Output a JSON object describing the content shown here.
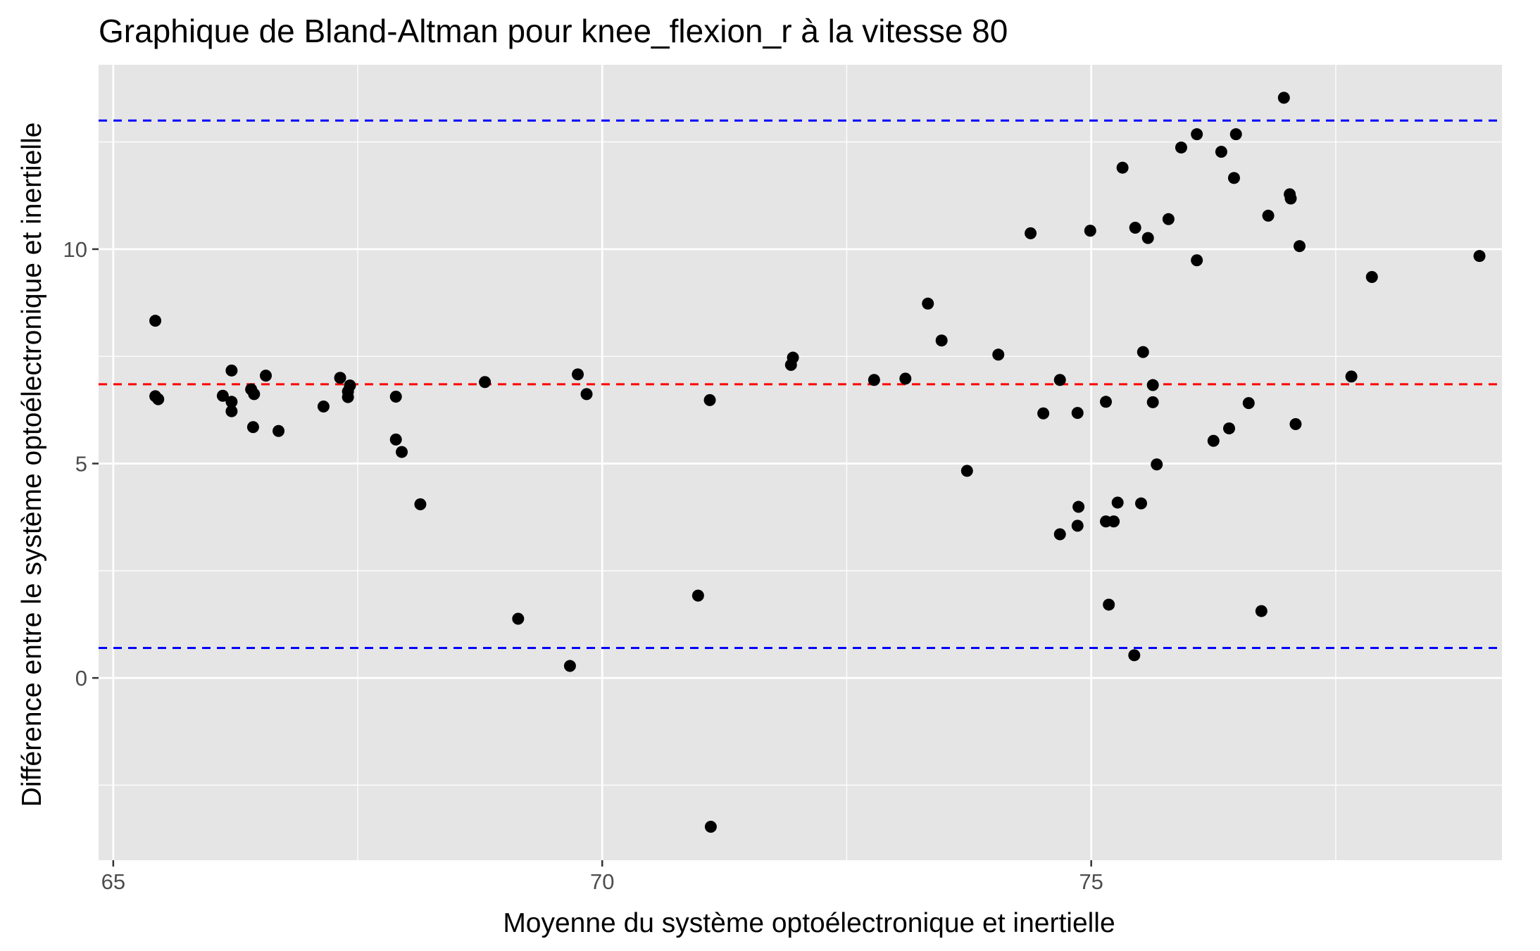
{
  "chart_data": {
    "type": "scatter",
    "title": "Graphique de Bland-Altman pour knee_flexion_r à la vitesse 80",
    "xlabel": "Moyenne du système optoélectronique et inertielle",
    "ylabel": "Différence entre le système optoélectronique et inertielle",
    "xlim": [
      64.85,
      79.2
    ],
    "ylim": [
      -4.25,
      14.3
    ],
    "xticks": [
      65,
      70,
      75
    ],
    "yticks": [
      0,
      5,
      10
    ],
    "grid": true,
    "background": "#e5e5e5",
    "point_color": "#000000",
    "reference_lines": [
      {
        "y": 6.85,
        "color": "#ff0000",
        "style": "dashed"
      },
      {
        "y": 13.0,
        "color": "#0000ff",
        "style": "dashed"
      },
      {
        "y": 0.7,
        "color": "#0000ff",
        "style": "dashed"
      }
    ],
    "points": [
      {
        "x": 65.43,
        "y": 8.33
      },
      {
        "x": 65.43,
        "y": 6.57
      },
      {
        "x": 65.46,
        "y": 6.5
      },
      {
        "x": 66.12,
        "y": 6.58
      },
      {
        "x": 66.21,
        "y": 7.17
      },
      {
        "x": 66.21,
        "y": 6.44
      },
      {
        "x": 66.21,
        "y": 6.22
      },
      {
        "x": 66.41,
        "y": 6.73
      },
      {
        "x": 66.44,
        "y": 6.62
      },
      {
        "x": 66.43,
        "y": 5.85
      },
      {
        "x": 66.56,
        "y": 7.05
      },
      {
        "x": 66.69,
        "y": 5.76
      },
      {
        "x": 67.15,
        "y": 6.33
      },
      {
        "x": 67.32,
        "y": 7.0
      },
      {
        "x": 67.4,
        "y": 6.68
      },
      {
        "x": 67.42,
        "y": 6.82
      },
      {
        "x": 67.4,
        "y": 6.55
      },
      {
        "x": 67.89,
        "y": 6.56
      },
      {
        "x": 67.89,
        "y": 5.56
      },
      {
        "x": 67.95,
        "y": 5.27
      },
      {
        "x": 68.14,
        "y": 4.05
      },
      {
        "x": 68.8,
        "y": 6.9
      },
      {
        "x": 69.14,
        "y": 1.38
      },
      {
        "x": 69.67,
        "y": 0.28
      },
      {
        "x": 69.75,
        "y": 7.08
      },
      {
        "x": 69.84,
        "y": 6.62
      },
      {
        "x": 70.98,
        "y": 1.92
      },
      {
        "x": 71.1,
        "y": 6.48
      },
      {
        "x": 71.11,
        "y": -3.47
      },
      {
        "x": 71.93,
        "y": 7.3
      },
      {
        "x": 71.95,
        "y": 7.47
      },
      {
        "x": 72.78,
        "y": 6.95
      },
      {
        "x": 73.1,
        "y": 6.98
      },
      {
        "x": 73.33,
        "y": 8.73
      },
      {
        "x": 73.47,
        "y": 7.87
      },
      {
        "x": 73.73,
        "y": 4.83
      },
      {
        "x": 74.05,
        "y": 7.54
      },
      {
        "x": 74.38,
        "y": 10.37
      },
      {
        "x": 74.51,
        "y": 6.17
      },
      {
        "x": 74.68,
        "y": 6.95
      },
      {
        "x": 74.68,
        "y": 3.35
      },
      {
        "x": 74.86,
        "y": 6.18
      },
      {
        "x": 74.86,
        "y": 3.55
      },
      {
        "x": 74.87,
        "y": 3.99
      },
      {
        "x": 74.99,
        "y": 10.43
      },
      {
        "x": 75.15,
        "y": 6.44
      },
      {
        "x": 75.15,
        "y": 3.65
      },
      {
        "x": 75.18,
        "y": 1.71
      },
      {
        "x": 75.23,
        "y": 3.65
      },
      {
        "x": 75.27,
        "y": 4.09
      },
      {
        "x": 75.32,
        "y": 11.9
      },
      {
        "x": 75.44,
        "y": 0.53
      },
      {
        "x": 75.45,
        "y": 10.5
      },
      {
        "x": 75.51,
        "y": 4.07
      },
      {
        "x": 75.53,
        "y": 7.6
      },
      {
        "x": 75.58,
        "y": 10.26
      },
      {
        "x": 75.63,
        "y": 6.83
      },
      {
        "x": 75.63,
        "y": 6.43
      },
      {
        "x": 75.67,
        "y": 4.98
      },
      {
        "x": 75.79,
        "y": 10.7
      },
      {
        "x": 75.92,
        "y": 12.37
      },
      {
        "x": 76.08,
        "y": 12.68
      },
      {
        "x": 76.08,
        "y": 9.74
      },
      {
        "x": 76.25,
        "y": 5.53
      },
      {
        "x": 76.33,
        "y": 12.27
      },
      {
        "x": 76.41,
        "y": 5.82
      },
      {
        "x": 76.46,
        "y": 11.66
      },
      {
        "x": 76.48,
        "y": 12.68
      },
      {
        "x": 76.61,
        "y": 6.41
      },
      {
        "x": 76.74,
        "y": 1.56
      },
      {
        "x": 76.81,
        "y": 10.78
      },
      {
        "x": 76.97,
        "y": 13.53
      },
      {
        "x": 77.03,
        "y": 11.28
      },
      {
        "x": 77.04,
        "y": 11.18
      },
      {
        "x": 77.09,
        "y": 5.92
      },
      {
        "x": 77.13,
        "y": 10.07
      },
      {
        "x": 77.66,
        "y": 7.03
      },
      {
        "x": 77.87,
        "y": 9.35
      },
      {
        "x": 78.97,
        "y": 9.84
      }
    ]
  }
}
